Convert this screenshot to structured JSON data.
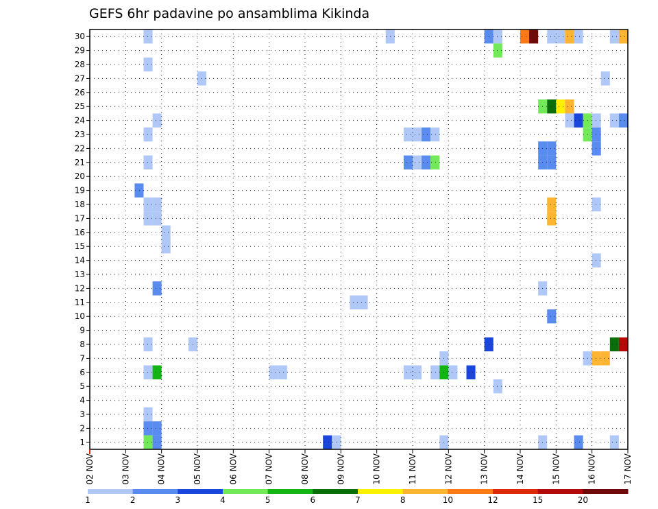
{
  "chart_data": {
    "type": "heatmap",
    "title": "GEFS 6hr padavine po ansamblima Kikinda",
    "xlabel": "",
    "ylabel": "",
    "x_tick_labels": [
      "02 NOV",
      "03 NOV",
      "04 NOV",
      "05 NOV",
      "06 NOV",
      "07 NOV",
      "08 NOV",
      "09 NOV",
      "10 NOV",
      "11 NOV",
      "12 NOV",
      "13 NOV",
      "14 NOV",
      "15 NOV",
      "16 NOV",
      "17 NOV"
    ],
    "x_range_days": [
      0,
      15
    ],
    "y_range": [
      0.5,
      30.5
    ],
    "y_tick_labels": [
      "1",
      "2",
      "3",
      "4",
      "5",
      "6",
      "7",
      "8",
      "9",
      "10",
      "11",
      "12",
      "13",
      "14",
      "15",
      "16",
      "17",
      "18",
      "19",
      "20",
      "21",
      "22",
      "23",
      "24",
      "25",
      "26",
      "27",
      "28",
      "29",
      "30"
    ],
    "grid": true,
    "legend": {
      "placement": "bottom",
      "tick_labels": [
        "1",
        "2",
        "3",
        "4",
        "5",
        "6",
        "7",
        "8",
        "10",
        "12",
        "15",
        "20"
      ],
      "colors": [
        "#b0c8f8",
        "#5a8cf0",
        "#1a46dc",
        "#72e85a",
        "#14b414",
        "#0a6e0a",
        "#fff000",
        "#ffb432",
        "#ff7a14",
        "#e0280a",
        "#b40a0a",
        "#6e0a0a"
      ]
    },
    "levels": [
      {
        "name": "1-2 mm",
        "color": "#b0c8f8"
      },
      {
        "name": "2-3 mm",
        "color": "#5a8cf0"
      },
      {
        "name": "3-4 mm",
        "color": "#1a46dc"
      },
      {
        "name": "4-5 mm",
        "color": "#72e85a"
      },
      {
        "name": "5-6 mm",
        "color": "#14b414"
      },
      {
        "name": "6-7 mm",
        "color": "#0a6e0a"
      },
      {
        "name": "7-8 mm",
        "color": "#fff000"
      },
      {
        "name": "8-10 mm",
        "color": "#ffb432"
      },
      {
        "name": "10-12 mm",
        "color": "#ff7a14"
      },
      {
        "name": "12-15 mm",
        "color": "#e0280a"
      },
      {
        "name": "15-20 mm",
        "color": "#b40a0a"
      },
      {
        "name": ">20 mm",
        "color": "#6e0a0a"
      }
    ],
    "cells_note": "each cell = [day offset from 02 NOV 00Z (0.25 = 6h), ensemble member, level index]",
    "cells": [
      [
        1.5,
        30,
        0
      ],
      [
        8.25,
        30,
        0
      ],
      [
        11.0,
        30,
        1
      ],
      [
        11.25,
        30,
        0
      ],
      [
        12.0,
        30,
        8
      ],
      [
        12.25,
        30,
        11
      ],
      [
        12.75,
        30,
        0
      ],
      [
        13.0,
        30,
        0
      ],
      [
        13.25,
        30,
        7
      ],
      [
        13.5,
        30,
        0
      ],
      [
        14.5,
        30,
        0
      ],
      [
        14.75,
        30,
        7
      ],
      [
        11.25,
        29,
        3
      ],
      [
        1.5,
        28,
        0
      ],
      [
        3.0,
        27,
        0
      ],
      [
        14.25,
        27,
        0
      ],
      [
        12.5,
        25,
        3
      ],
      [
        12.75,
        25,
        5
      ],
      [
        13.0,
        25,
        6
      ],
      [
        13.25,
        25,
        7
      ],
      [
        1.75,
        24,
        0
      ],
      [
        13.25,
        24,
        0
      ],
      [
        13.5,
        24,
        2
      ],
      [
        13.75,
        24,
        3
      ],
      [
        14.0,
        24,
        0
      ],
      [
        14.5,
        24,
        0
      ],
      [
        14.75,
        24,
        1
      ],
      [
        1.5,
        23,
        0
      ],
      [
        8.75,
        23,
        0
      ],
      [
        9.0,
        23,
        0
      ],
      [
        9.25,
        23,
        1
      ],
      [
        9.5,
        23,
        0
      ],
      [
        13.75,
        23,
        3
      ],
      [
        14.0,
        23,
        1
      ],
      [
        12.5,
        22,
        1
      ],
      [
        12.75,
        22,
        1
      ],
      [
        14.0,
        22,
        1
      ],
      [
        1.5,
        21,
        0
      ],
      [
        8.75,
        21,
        1
      ],
      [
        9.0,
        21,
        0
      ],
      [
        9.25,
        21,
        1
      ],
      [
        9.5,
        21,
        3
      ],
      [
        12.5,
        21,
        1
      ],
      [
        12.75,
        21,
        1
      ],
      [
        1.25,
        19,
        1
      ],
      [
        14.0,
        18,
        0
      ],
      [
        1.5,
        18,
        0
      ],
      [
        1.75,
        18,
        0
      ],
      [
        1.5,
        17,
        0
      ],
      [
        1.75,
        17,
        0
      ],
      [
        12.75,
        18,
        7
      ],
      [
        12.75,
        17,
        7
      ],
      [
        2.0,
        16,
        0
      ],
      [
        2.0,
        15,
        0
      ],
      [
        14.0,
        14,
        0
      ],
      [
        1.75,
        12,
        1
      ],
      [
        12.5,
        12,
        0
      ],
      [
        7.25,
        11,
        0
      ],
      [
        7.5,
        11,
        0
      ],
      [
        12.75,
        10,
        1
      ],
      [
        1.5,
        8,
        0
      ],
      [
        2.75,
        8,
        0
      ],
      [
        11.0,
        8,
        2
      ],
      [
        14.5,
        8,
        5
      ],
      [
        14.75,
        8,
        10
      ],
      [
        9.75,
        7,
        0
      ],
      [
        13.75,
        7,
        0
      ],
      [
        14.0,
        7,
        7
      ],
      [
        14.25,
        7,
        7
      ],
      [
        1.5,
        6,
        0
      ],
      [
        1.75,
        6,
        4
      ],
      [
        5.0,
        6,
        0
      ],
      [
        5.25,
        6,
        0
      ],
      [
        8.75,
        6,
        0
      ],
      [
        9.0,
        6,
        0
      ],
      [
        9.5,
        6,
        0
      ],
      [
        9.75,
        6,
        4
      ],
      [
        10.0,
        6,
        0
      ],
      [
        10.5,
        6,
        2
      ],
      [
        11.25,
        5,
        0
      ],
      [
        1.5,
        3,
        0
      ],
      [
        1.5,
        2,
        1
      ],
      [
        1.75,
        2,
        1
      ],
      [
        1.5,
        1,
        3
      ],
      [
        1.75,
        1,
        1
      ],
      [
        6.5,
        1,
        2
      ],
      [
        6.75,
        1,
        0
      ],
      [
        9.75,
        1,
        0
      ],
      [
        12.5,
        1,
        0
      ],
      [
        13.5,
        1,
        1
      ],
      [
        14.5,
        1,
        0
      ]
    ]
  }
}
